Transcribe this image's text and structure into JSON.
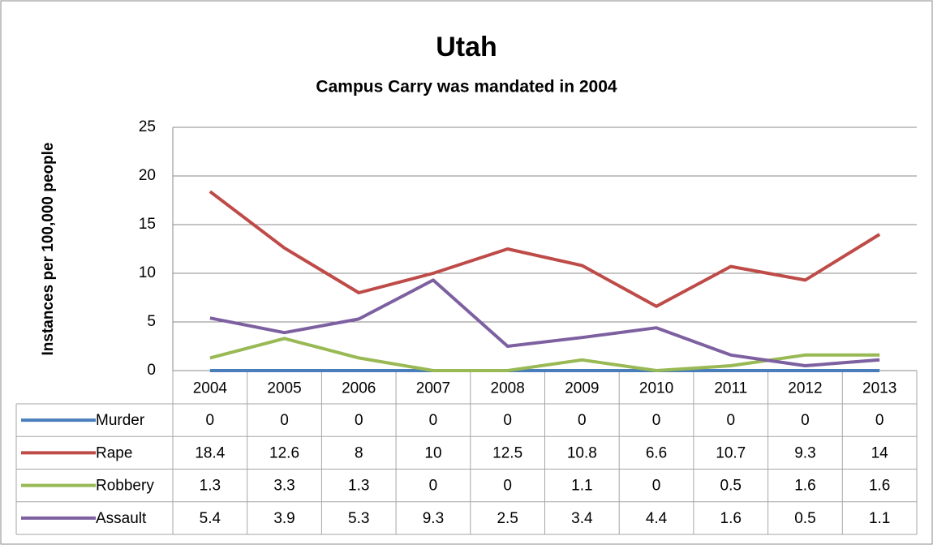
{
  "chart_data": {
    "type": "line",
    "title": "Utah",
    "subtitle": "Campus Carry was mandated in 2004",
    "y_label": "Instances per 100,000 people",
    "categories": [
      "2004",
      "2005",
      "2006",
      "2007",
      "2008",
      "2009",
      "2010",
      "2011",
      "2012",
      "2013"
    ],
    "series": [
      {
        "name": "Murder",
        "color": "#4a7ebb",
        "values": [
          0,
          0,
          0,
          0,
          0,
          0,
          0,
          0,
          0,
          0
        ]
      },
      {
        "name": "Rape",
        "color": "#be4b48",
        "values": [
          18.4,
          12.6,
          8,
          10,
          12.5,
          10.8,
          6.6,
          10.7,
          9.3,
          14
        ]
      },
      {
        "name": "Robbery",
        "color": "#98b954",
        "values": [
          1.3,
          3.3,
          1.3,
          0,
          0,
          1.1,
          0,
          0.5,
          1.6,
          1.6
        ]
      },
      {
        "name": "Assault",
        "color": "#7d60a0",
        "values": [
          5.4,
          3.9,
          5.3,
          9.3,
          2.5,
          3.4,
          4.4,
          1.6,
          0.5,
          1.1
        ]
      }
    ],
    "ylim": [
      0,
      25
    ],
    "yticks": [
      0,
      5,
      10,
      15,
      20,
      25
    ],
    "grid": true
  }
}
